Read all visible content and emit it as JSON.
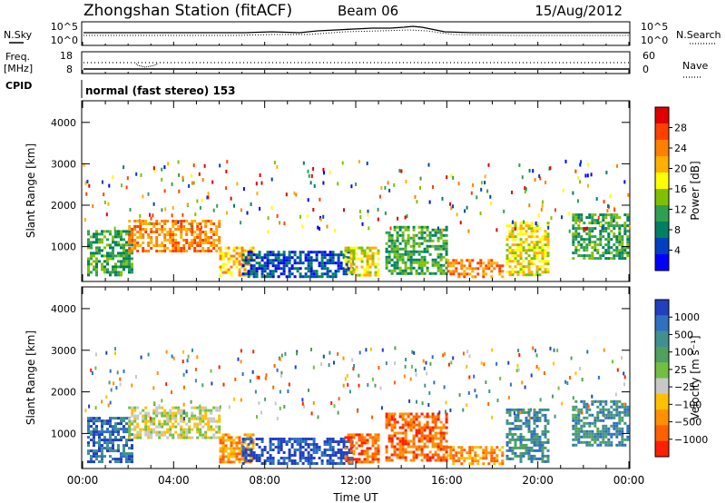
{
  "header": {
    "title": "Zhongshan Station (fitACF)",
    "beam": "Beam 06",
    "date": "15/Aug/2012"
  },
  "noise_panel": {
    "left_label": "N.Sky",
    "left_ticks": [
      "10^5",
      "10^0"
    ],
    "right_ticks": [
      "10^5",
      "10^0"
    ],
    "right_label": "N.Search"
  },
  "freq_panel": {
    "left_label_line1": "Freq.",
    "left_label_line2": "[MHz]",
    "left_ticks": [
      "18",
      "8"
    ],
    "right_ticks": [
      "60",
      "0"
    ],
    "right_label": "Nave"
  },
  "cpid": {
    "label": "CPID",
    "value": "normal (fast stereo) 153"
  },
  "x_axis": {
    "label": "Time UT",
    "ticks": [
      "00:00",
      "04:00",
      "08:00",
      "12:00",
      "16:00",
      "20:00",
      "00:00"
    ]
  },
  "chart_data": [
    {
      "type": "heatmap",
      "quantity": "Power",
      "ylabel": "Slant Range [km]",
      "yticks": [
        1000,
        2000,
        3000,
        4000
      ],
      "ylim": [
        180,
        4500
      ],
      "xlim": [
        0,
        24
      ],
      "colorbar": {
        "label": "Power [dB]",
        "ticks": [
          "28",
          "24",
          "20",
          "16",
          "12",
          "8",
          "4"
        ],
        "colors": [
          "#e00000",
          "#ff4000",
          "#ff8000",
          "#ffb000",
          "#ffff00",
          "#80c000",
          "#30a050",
          "#008060",
          "#0040c0",
          "#0000ff"
        ]
      },
      "regions": [
        {
          "t0": 0.2,
          "t1": 2.2,
          "r0": 300,
          "r1": 1400,
          "level": 6
        },
        {
          "t0": 2.0,
          "t1": 6.0,
          "r0": 900,
          "r1": 1650,
          "level": 2
        },
        {
          "t0": 6.0,
          "t1": 7.5,
          "r0": 300,
          "r1": 1000,
          "level": 3
        },
        {
          "t0": 7.0,
          "t1": 11.8,
          "r0": 300,
          "r1": 900,
          "level": 8
        },
        {
          "t0": 11.5,
          "t1": 13.0,
          "r0": 300,
          "r1": 1000,
          "level": 4
        },
        {
          "t0": 13.3,
          "t1": 16.0,
          "r0": 350,
          "r1": 1500,
          "level": 6
        },
        {
          "t0": 16.0,
          "t1": 18.5,
          "r0": 300,
          "r1": 700,
          "level": 2
        },
        {
          "t0": 18.6,
          "t1": 20.5,
          "r0": 350,
          "r1": 1600,
          "level": 4
        },
        {
          "t0": 21.5,
          "t1": 24.0,
          "r0": 700,
          "r1": 1800,
          "level": 6
        }
      ]
    },
    {
      "type": "heatmap",
      "quantity": "Velocity",
      "ylabel": "Slant Range [km]",
      "yticks": [
        1000,
        2000,
        3000,
        4000
      ],
      "ylim": [
        180,
        4500
      ],
      "xlim": [
        0,
        24
      ],
      "colorbar": {
        "label": "Velocity [m s⁻¹]",
        "ticks": [
          "1000",
          "500",
          "100",
          "25",
          "−25",
          "−100",
          "−500",
          "−1000"
        ],
        "colors": [
          "#2040c0",
          "#3070c0",
          "#409090",
          "#50a060",
          "#70c040",
          "#c8c8c8",
          "#ffc000",
          "#ff9000",
          "#ff6000",
          "#ff2000"
        ]
      },
      "regions": [
        {
          "t0": 0.2,
          "t1": 2.2,
          "r0": 300,
          "r1": 1400,
          "level": 1
        },
        {
          "t0": 2.0,
          "t1": 6.0,
          "r0": 900,
          "r1": 1650,
          "level": 5
        },
        {
          "t0": 6.0,
          "t1": 7.5,
          "r0": 300,
          "r1": 1000,
          "level": 7
        },
        {
          "t0": 7.0,
          "t1": 11.8,
          "r0": 300,
          "r1": 900,
          "level": 0
        },
        {
          "t0": 11.5,
          "t1": 13.0,
          "r0": 300,
          "r1": 1000,
          "level": 8
        },
        {
          "t0": 13.3,
          "t1": 16.0,
          "r0": 350,
          "r1": 1500,
          "level": 8
        },
        {
          "t0": 16.0,
          "t1": 18.5,
          "r0": 300,
          "r1": 700,
          "level": 7
        },
        {
          "t0": 18.6,
          "t1": 20.5,
          "r0": 350,
          "r1": 1600,
          "level": 2
        },
        {
          "t0": 21.5,
          "t1": 24.0,
          "r0": 700,
          "r1": 1800,
          "level": 2
        }
      ]
    }
  ]
}
